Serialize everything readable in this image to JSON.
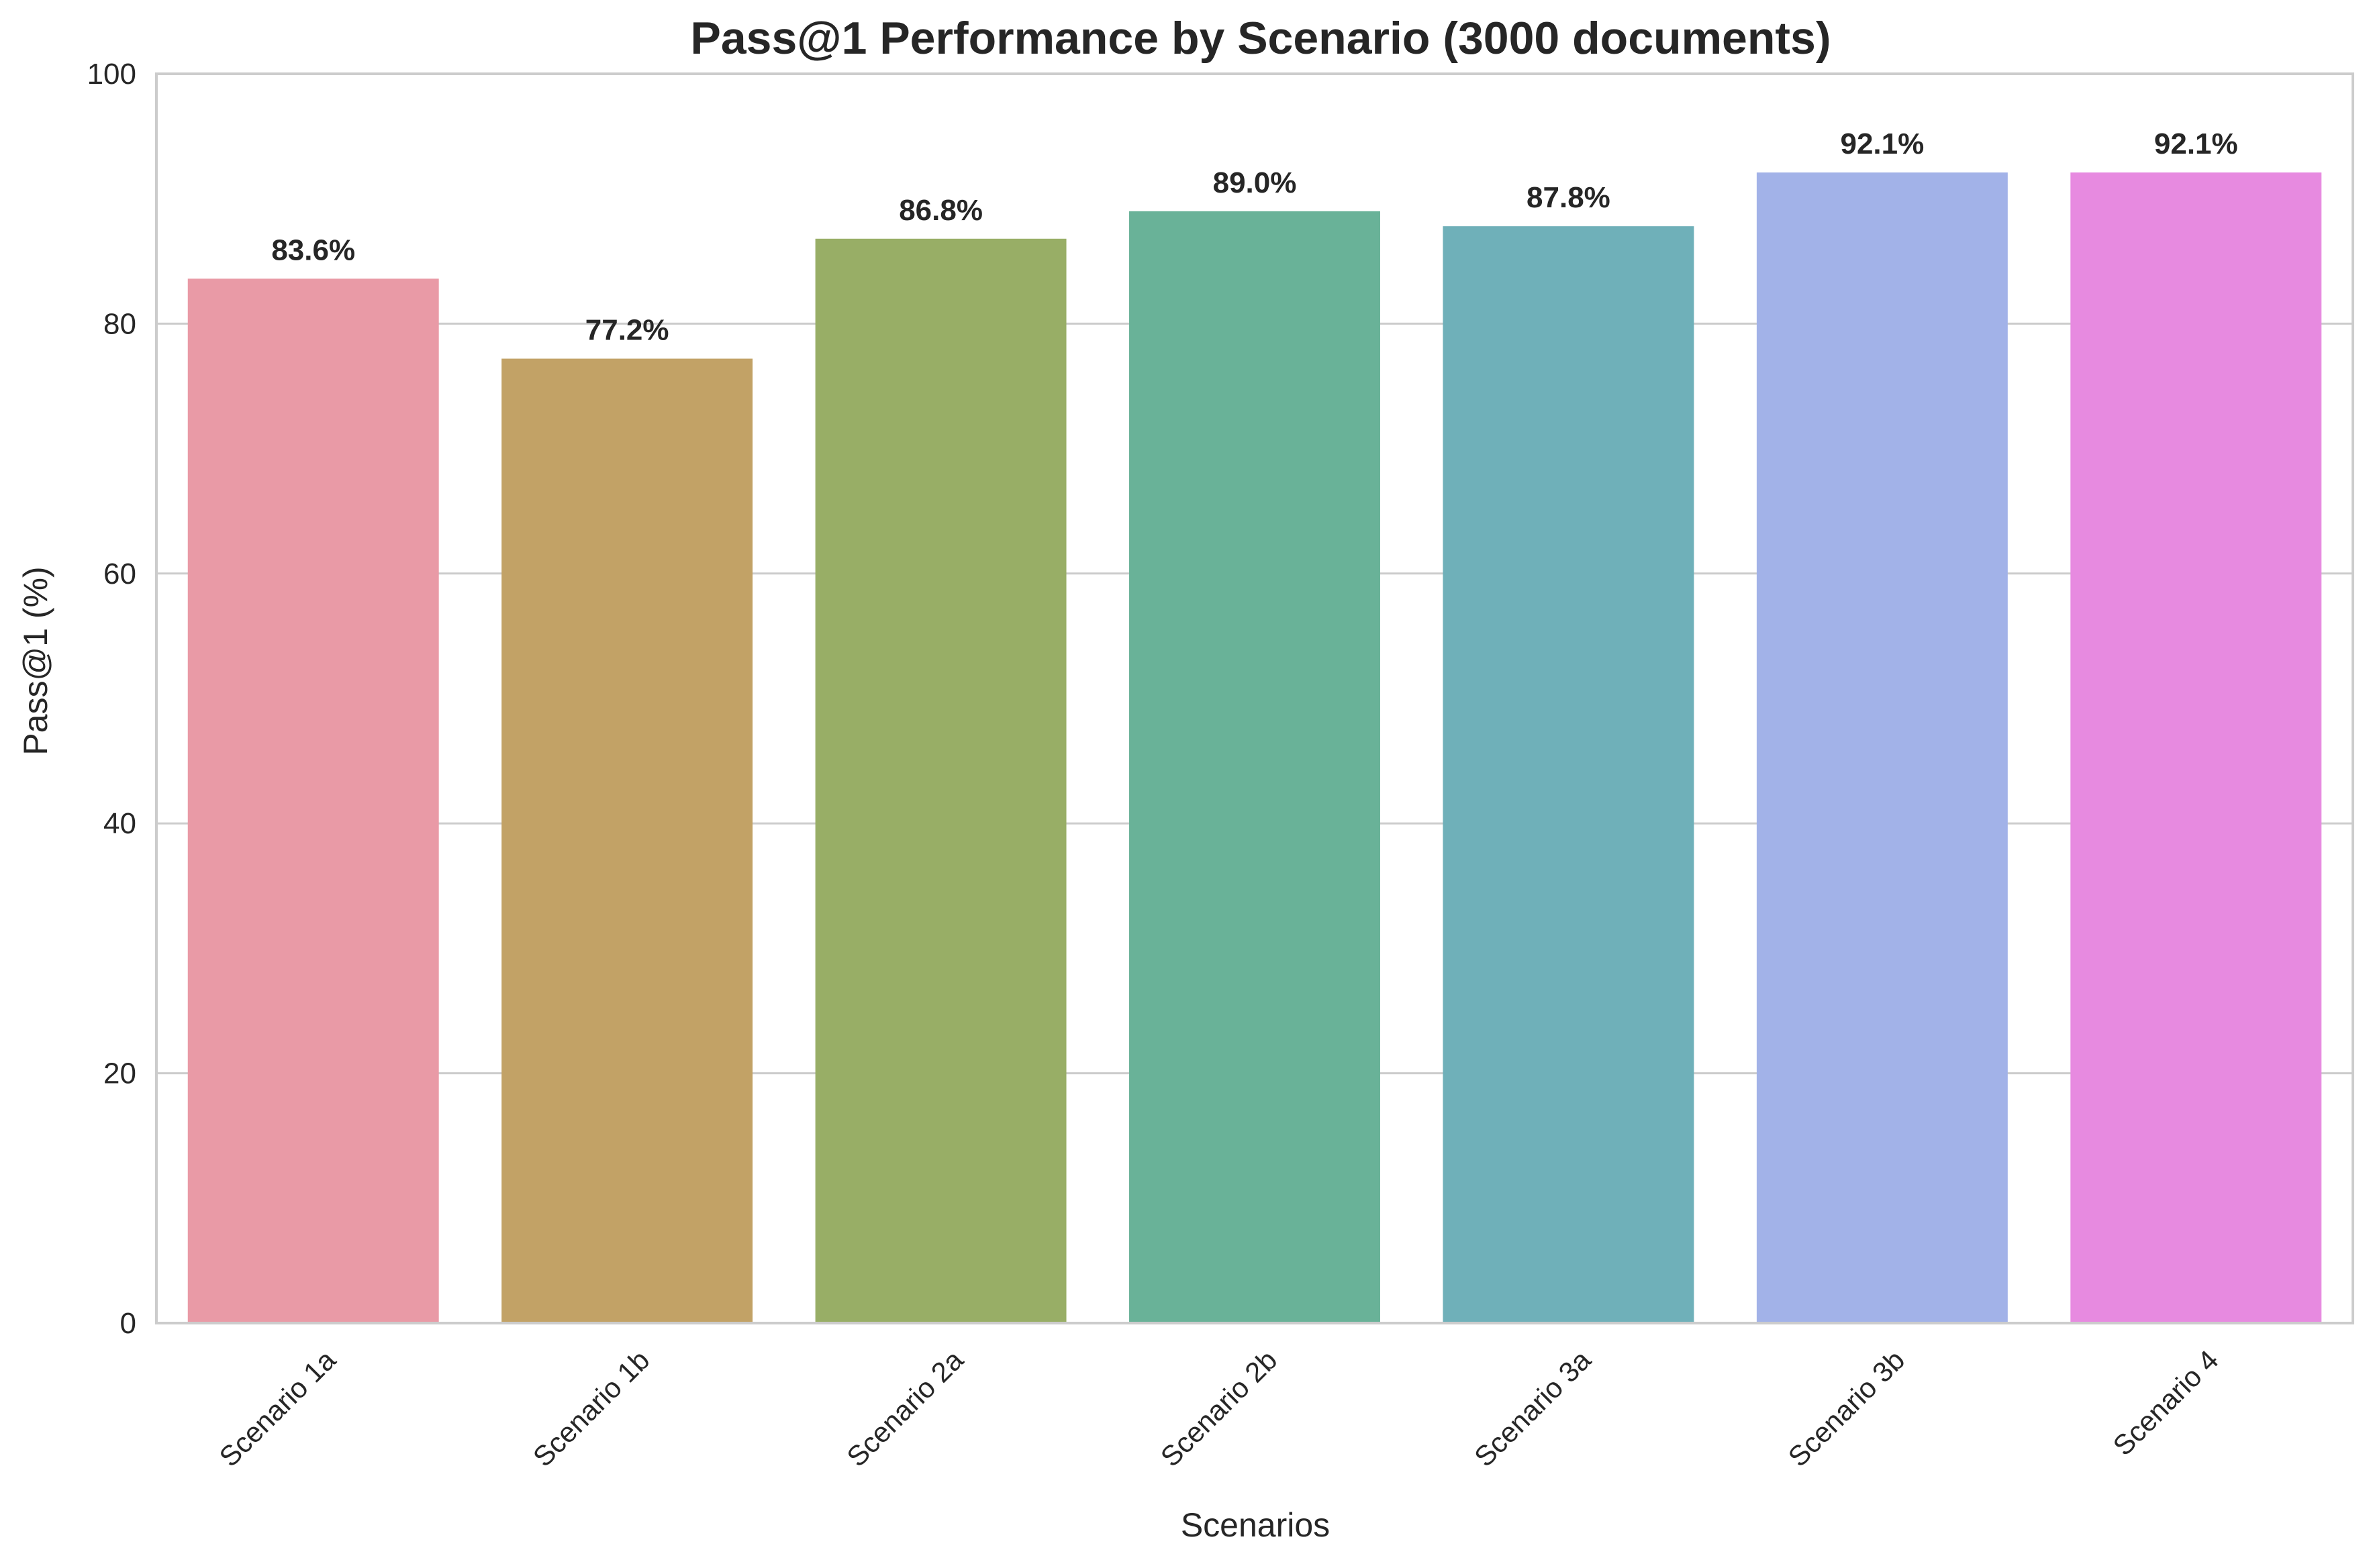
{
  "chart_data": {
    "type": "bar",
    "title": "Pass@1 Performance by Scenario (3000 documents)",
    "xlabel": "Scenarios",
    "ylabel": "Pass@1 (%)",
    "ylim": [
      0,
      100
    ],
    "yticks": [
      0,
      20,
      40,
      60,
      80,
      100
    ],
    "grid": true,
    "categories": [
      "Scenario 1a",
      "Scenario 1b",
      "Scenario 2a",
      "Scenario 2b",
      "Scenario 3a",
      "Scenario 3b",
      "Scenario 4"
    ],
    "values": [
      83.6,
      77.2,
      86.8,
      89.0,
      87.8,
      92.1,
      92.1
    ],
    "data_labels": [
      "83.6%",
      "77.2%",
      "86.8%",
      "89.0%",
      "87.8%",
      "92.1%",
      "92.1%"
    ],
    "colors": [
      "#e99aa6",
      "#c2a266",
      "#98ae66",
      "#69b298",
      "#6fb0b9",
      "#a2b2e8",
      "#e78ae0"
    ]
  }
}
